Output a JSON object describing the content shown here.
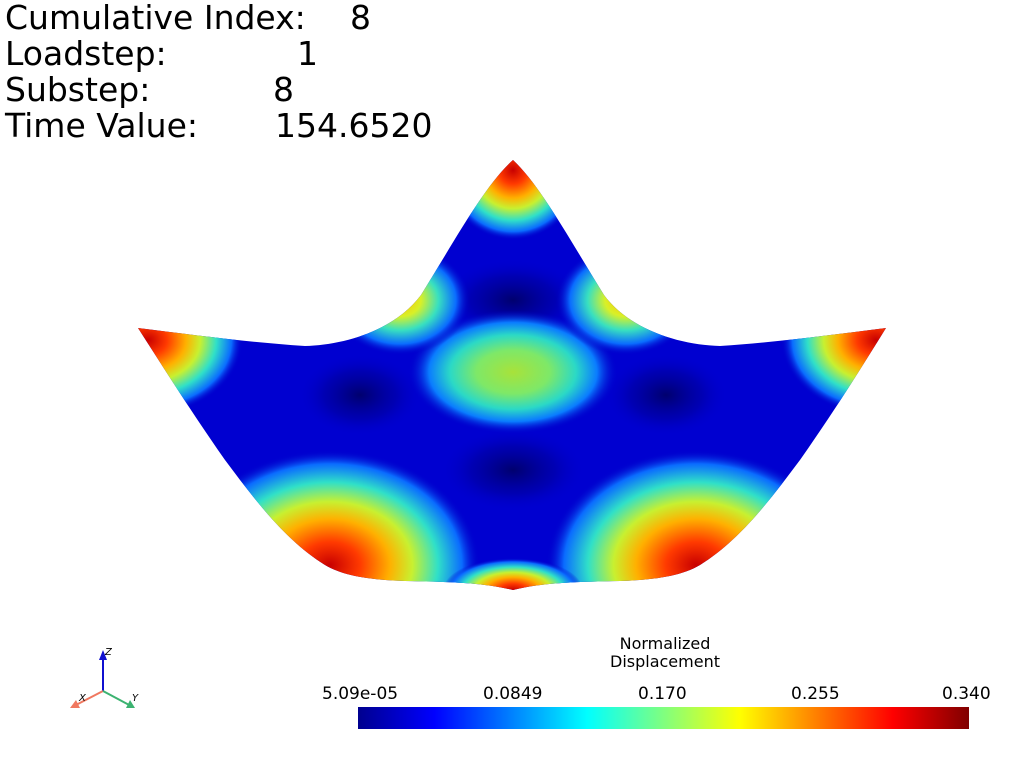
{
  "info": {
    "cumulative_index_label": "Cumulative Index:",
    "cumulative_index_value": "8",
    "loadstep_label": "Loadstep:",
    "loadstep_value": "1",
    "substep_label": "Substep:",
    "substep_value": "8",
    "time_value_label": "Time Value:",
    "time_value_value": "154.6520"
  },
  "colorbar": {
    "title_line1": "Normalized",
    "title_line2": "Displacement",
    "colormap": "jet",
    "min": 5.09e-05,
    "max": 0.34,
    "ticks": [
      "5.09e-05",
      "0.0849",
      "0.170",
      "0.255",
      "0.340"
    ]
  },
  "axes_widget": {
    "x_label": "X",
    "y_label": "Y",
    "z_label": "Z",
    "x_color": "#f07860",
    "y_color": "#3cb371",
    "z_color": "#1010d0"
  }
}
